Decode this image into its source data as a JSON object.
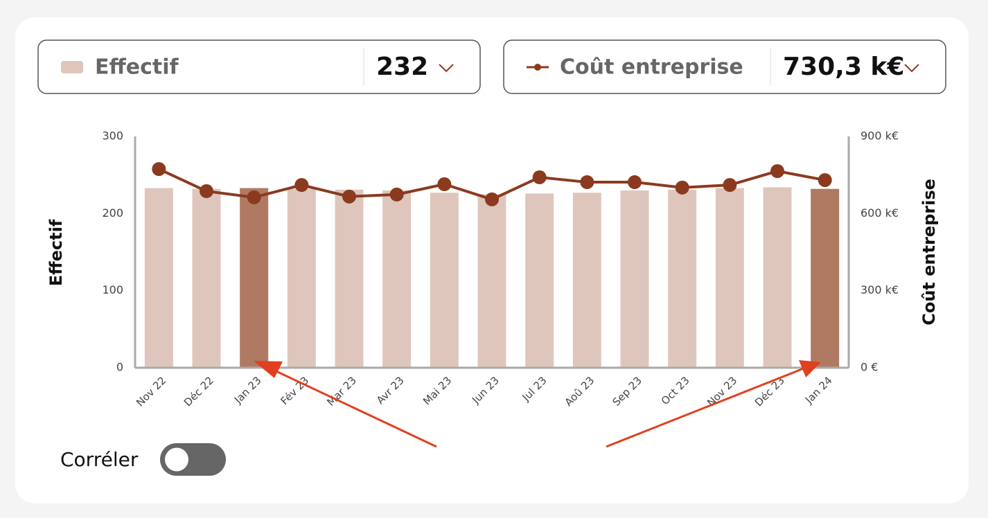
{
  "selectors": [
    {
      "value": "232"
    },
    {
      "value": "730,3 k€"
    }
  ],
  "toggle": {
    "label": "Corréler",
    "on": false
  },
  "chart_data": {
    "type": "combo",
    "categories": [
      "Nov 22",
      "Déc 22",
      "Jan 23",
      "Fév 23",
      "Mar 23",
      "Avr 23",
      "Mai 23",
      "Jun 23",
      "Jul 23",
      "Aoû 23",
      "Sep 23",
      "Oct 23",
      "Nov 23",
      "Déc 23",
      "Jan 24"
    ],
    "ylabel": "Effectif",
    "y2label": "Coût entreprise",
    "ylim": [
      0,
      300
    ],
    "yticks": [
      0,
      100,
      200,
      300
    ],
    "y2lim": [
      0,
      900
    ],
    "y2ticks": [
      {
        "value": 0,
        "label": "0 €"
      },
      {
        "value": 300,
        "label": "300 k€"
      },
      {
        "value": 600,
        "label": "600 k€"
      },
      {
        "value": 900,
        "label": "900 k€"
      }
    ],
    "grid": false,
    "series": [
      {
        "name": "Effectif",
        "type": "bar",
        "color": "#dfc6bc",
        "colors": [
          "#dfc6bc",
          "#dfc6bc",
          "#b07a62",
          "#dfc6bc",
          "#dfc6bc",
          "#dfc6bc",
          "#dfc6bc",
          "#dfc6bc",
          "#dfc6bc",
          "#dfc6bc",
          "#dfc6bc",
          "#dfc6bc",
          "#dfc6bc",
          "#dfc6bc",
          "#b07a62"
        ],
        "values": [
          233,
          232,
          233,
          232,
          231,
          230,
          227,
          225,
          226,
          227,
          230,
          231,
          233,
          234,
          232
        ]
      },
      {
        "name": "Coût entreprise",
        "type": "line",
        "axis": "y2",
        "color": "#8b3a1f",
        "values": [
          773,
          687,
          663,
          711,
          666,
          674,
          714,
          655,
          741,
          722,
          722,
          701,
          711,
          765,
          730
        ]
      }
    ]
  }
}
